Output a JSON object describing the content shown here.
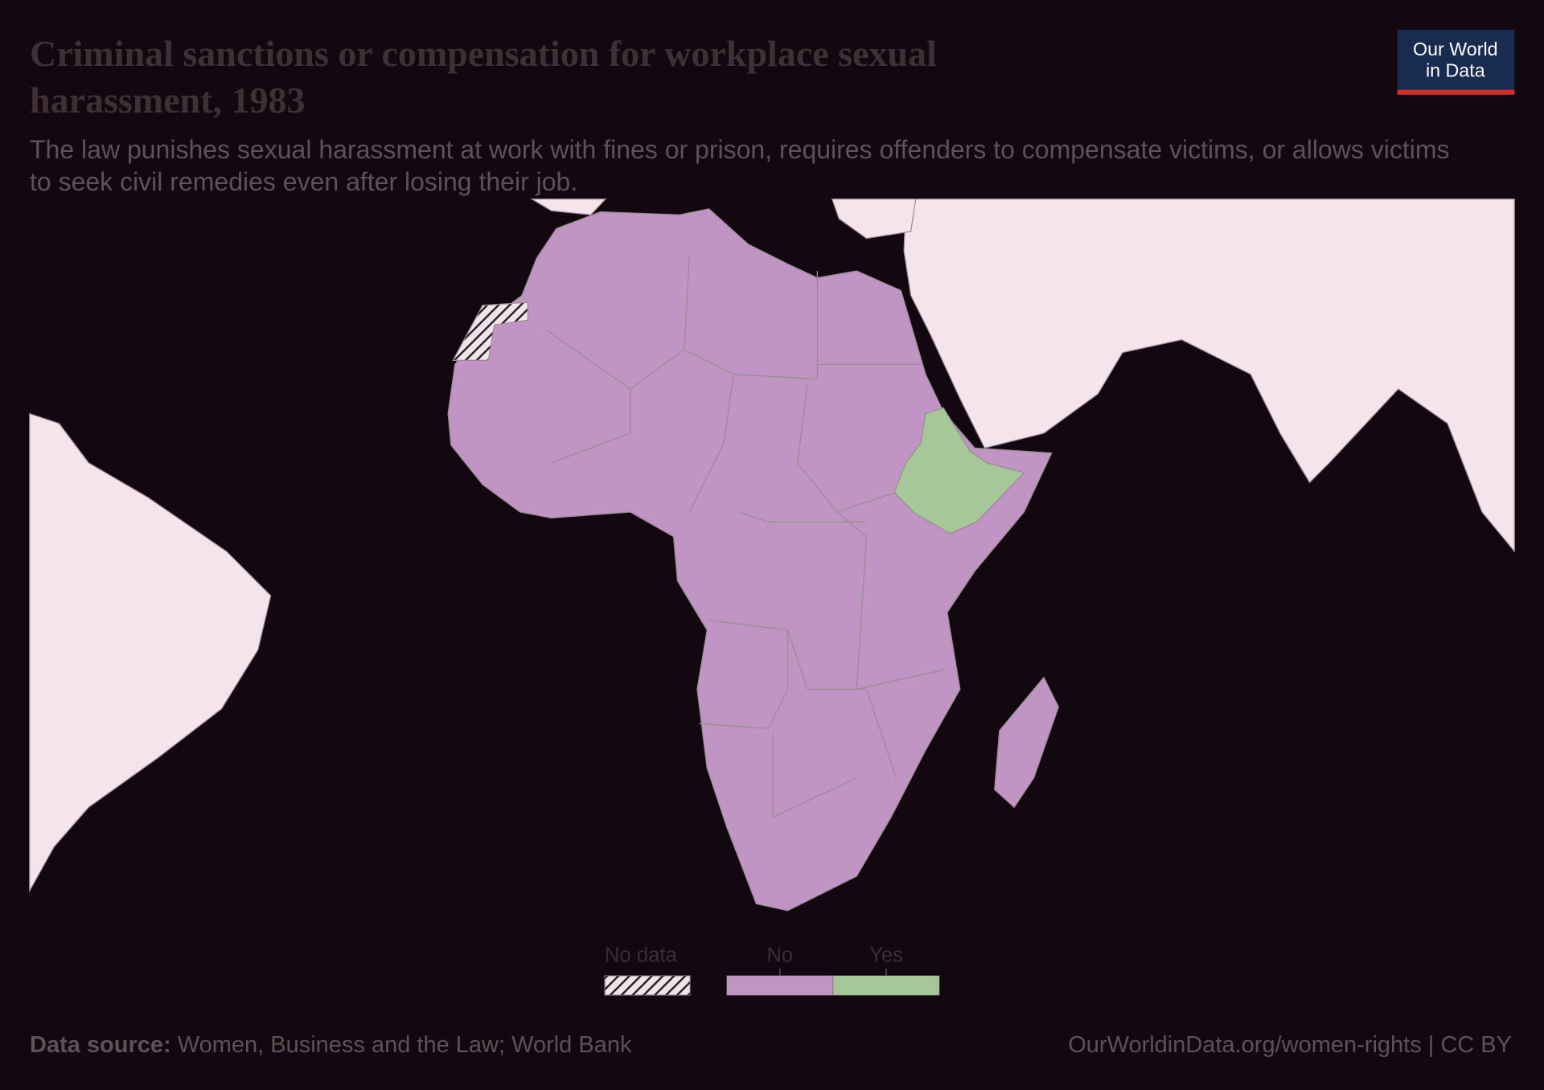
{
  "header": {
    "title": "Criminal sanctions or compensation for workplace sexual harassment, 1983",
    "subtitle": "The law punishes sexual harassment at work with fines or prison, requires offenders to compensate victims, or allows victims to seek civil remedies even after losing their job.",
    "logo": [
      "Our World",
      "in Data"
    ]
  },
  "legend": {
    "items": [
      {
        "label": "No data",
        "pattern": "hatch"
      },
      {
        "label": "No",
        "color": "#c094c3"
      },
      {
        "label": "Yes",
        "color": "#a6c797"
      }
    ]
  },
  "footer": {
    "source_label": "Data source:",
    "source": "Women, Business and the Law; World Bank",
    "url": "OurWorldinData.org/women-rights | CC BY"
  }
}
